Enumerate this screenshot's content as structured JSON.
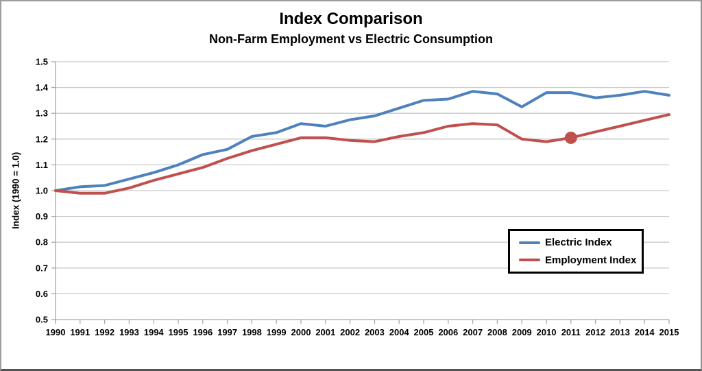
{
  "chart_data": {
    "type": "line",
    "title": "Index Comparison",
    "subtitle": "Non-Farm Employment vs Electric Consumption",
    "xlabel": "",
    "ylabel": "Index (1990 = 1.0)",
    "ylim": [
      0.5,
      1.5
    ],
    "ytick_step": 0.1,
    "ytick_labels": [
      "0.5",
      "0.6",
      "0.7",
      "0.8",
      "0.9",
      "1.0",
      "1.1",
      "1.2",
      "1.3",
      "1.4",
      "1.5"
    ],
    "grid": true,
    "legend_position": "middle-right",
    "categories": [
      "1990",
      "1991",
      "1992",
      "1993",
      "1994",
      "1995",
      "1996",
      "1997",
      "1998",
      "1999",
      "2000",
      "2001",
      "2002",
      "2003",
      "2004",
      "2005",
      "2006",
      "2007",
      "2008",
      "2009",
      "2010",
      "2011",
      "2012",
      "2013",
      "2014",
      "2015"
    ],
    "series": [
      {
        "name": "Electric Index",
        "color": "#4F81BD",
        "values": [
          1.0,
          1.015,
          1.02,
          1.045,
          1.07,
          1.1,
          1.14,
          1.16,
          1.21,
          1.225,
          1.26,
          1.25,
          1.275,
          1.29,
          1.32,
          1.35,
          1.355,
          1.385,
          1.375,
          1.325,
          1.38,
          1.38,
          1.36,
          1.37,
          1.385,
          1.37
        ]
      },
      {
        "name": "Employment Index",
        "color": "#C0504D",
        "values": [
          1.0,
          0.99,
          0.99,
          1.01,
          1.04,
          1.065,
          1.09,
          1.125,
          1.155,
          1.18,
          1.205,
          1.205,
          1.195,
          1.19,
          1.21,
          1.225,
          1.25,
          1.26,
          1.255,
          1.2,
          1.19,
          1.205,
          1.228,
          1.25,
          1.273,
          1.295
        ],
        "marker": {
          "category": "2011",
          "value": 1.205
        }
      }
    ],
    "colors": {
      "grid": "#C9C9C9",
      "axis": "#A6A6A6",
      "legend_border": "#000000",
      "background": "#FFFFFF"
    }
  }
}
